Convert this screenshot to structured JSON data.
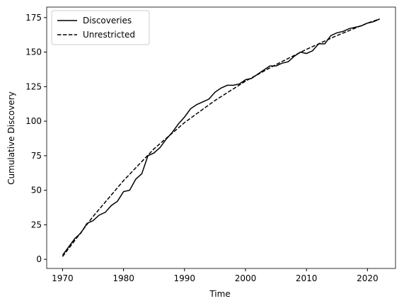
{
  "chart_data": {
    "type": "line",
    "xlabel": "Time",
    "ylabel": "Cumulative Discovery",
    "x": [
      1970,
      1971,
      1972,
      1973,
      1974,
      1975,
      1976,
      1977,
      1978,
      1979,
      1980,
      1981,
      1982,
      1983,
      1984,
      1985,
      1986,
      1987,
      1988,
      1989,
      1990,
      1991,
      1992,
      1993,
      1994,
      1995,
      1996,
      1997,
      1998,
      1999,
      2000,
      2001,
      2002,
      2003,
      2004,
      2005,
      2006,
      2007,
      2008,
      2009,
      2010,
      2011,
      2012,
      2013,
      2014,
      2015,
      2016,
      2017,
      2018,
      2019,
      2020,
      2021,
      2022
    ],
    "series": [
      {
        "name": "Discoveries",
        "color": "#000000",
        "dash": "solid",
        "values": [
          3,
          9,
          15,
          19,
          26,
          28,
          32,
          34,
          39,
          42,
          49,
          50,
          58,
          62,
          75,
          77,
          81,
          87,
          92,
          98,
          103,
          109,
          112,
          114,
          116,
          121,
          124,
          126,
          126,
          127,
          130,
          131,
          134,
          137,
          140,
          140,
          142,
          143,
          147,
          150,
          149,
          151,
          156,
          156,
          162,
          164,
          165,
          167,
          168,
          169,
          171,
          172,
          174
        ]
      },
      {
        "name": "Unrestricted",
        "color": "#000000",
        "dash": "dashed",
        "values": [
          2,
          7.8,
          13.6,
          19.4,
          25.2,
          31,
          36.2,
          41.4,
          46.6,
          51.8,
          57,
          61.6,
          66.2,
          70.8,
          75.4,
          80,
          83.8,
          87.6,
          91.4,
          95.2,
          99,
          102.2,
          105.4,
          108.6,
          111.8,
          115,
          117.8,
          120.6,
          123.4,
          126.2,
          129,
          131.4,
          133.8,
          136.2,
          138.6,
          141,
          143.2,
          145.4,
          147.6,
          149.8,
          152,
          154,
          156,
          158,
          160,
          162,
          163.8,
          165.6,
          167.4,
          169.2,
          171,
          172.5,
          174
        ]
      }
    ],
    "xlim": [
      1967.4,
      2024.6
    ],
    "xticks": [
      1970,
      1980,
      1990,
      2000,
      2010,
      2020
    ],
    "ylim": [
      -6.6,
      182.6
    ],
    "yticks": [
      0,
      25,
      50,
      75,
      100,
      125,
      150,
      175
    ],
    "legend": "upper left"
  }
}
